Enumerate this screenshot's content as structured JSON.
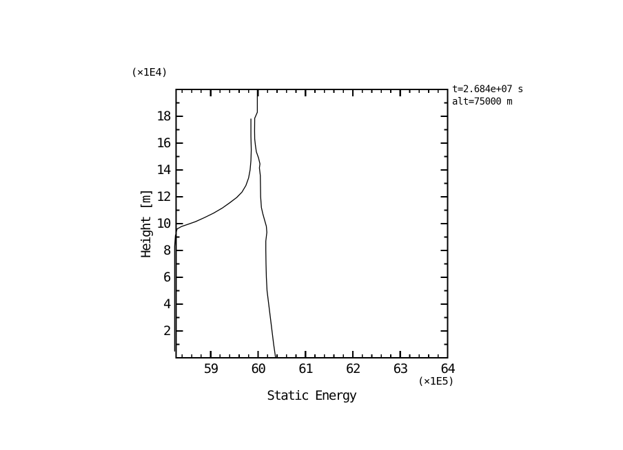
{
  "page": {
    "background": "#ffffff",
    "ink": "#000000"
  },
  "chart_data": {
    "type": "line",
    "title": "",
    "xlabel": "Static Energy",
    "ylabel": "Height [m]",
    "x_scale_note": "(×1E5)",
    "y_scale_note": "(×1E4)",
    "xlim": [
      58.27,
      64
    ],
    "ylim": [
      0,
      20
    ],
    "x_major_ticks": [
      59,
      60,
      61,
      62,
      63,
      64
    ],
    "x_minor_tick_step": 0.2,
    "y_major_ticks": [
      2,
      4,
      6,
      8,
      10,
      12,
      14,
      16,
      18
    ],
    "y_minor_tick_step": 1,
    "grid": false,
    "legend": "none",
    "annotation": {
      "time": "t=2.684e+07 s",
      "altitude": "alt=75000 m"
    },
    "series": [
      {
        "name": "static-energy-profile",
        "color": "#000000",
        "points": [
          [
            60.37,
            0
          ],
          [
            60.33,
            1
          ],
          [
            60.295,
            2
          ],
          [
            60.26,
            3
          ],
          [
            60.225,
            4
          ],
          [
            60.19,
            5
          ],
          [
            60.175,
            6
          ],
          [
            60.168,
            7
          ],
          [
            60.164,
            8
          ],
          [
            60.164,
            8.7
          ],
          [
            60.186,
            9.35
          ],
          [
            60.175,
            9.8
          ],
          [
            60.135,
            10.3
          ],
          [
            60.1,
            10.75
          ],
          [
            60.07,
            11.2
          ],
          [
            60.055,
            12.0
          ],
          [
            60.05,
            13.0
          ],
          [
            60.047,
            13.6
          ],
          [
            60.028,
            14.15
          ],
          [
            60.04,
            14.45
          ],
          [
            60.01,
            14.9
          ],
          [
            59.965,
            15.35
          ],
          [
            59.945,
            15.8
          ],
          [
            59.93,
            16.3
          ],
          [
            59.926,
            16.9
          ],
          [
            59.93,
            17.85
          ],
          [
            59.985,
            18.3
          ],
          [
            59.985,
            20
          ]
        ]
      },
      {
        "name": "static-energy-lower-branch",
        "color": "#000000",
        "points": [
          [
            58.24,
            0.5
          ],
          [
            58.24,
            8.3
          ],
          [
            58.255,
            9.1
          ],
          [
            58.29,
            9.6
          ],
          [
            58.38,
            9.78
          ],
          [
            58.52,
            9.95
          ],
          [
            58.68,
            10.15
          ],
          [
            58.87,
            10.45
          ],
          [
            59.06,
            10.78
          ],
          [
            59.24,
            11.15
          ],
          [
            59.4,
            11.55
          ],
          [
            59.55,
            11.95
          ],
          [
            59.66,
            12.35
          ],
          [
            59.745,
            12.85
          ],
          [
            59.8,
            13.4
          ],
          [
            59.832,
            14.0
          ],
          [
            59.85,
            14.7
          ],
          [
            59.856,
            15.5
          ],
          [
            59.85,
            16.5
          ],
          [
            59.85,
            17.8
          ]
        ]
      }
    ]
  }
}
